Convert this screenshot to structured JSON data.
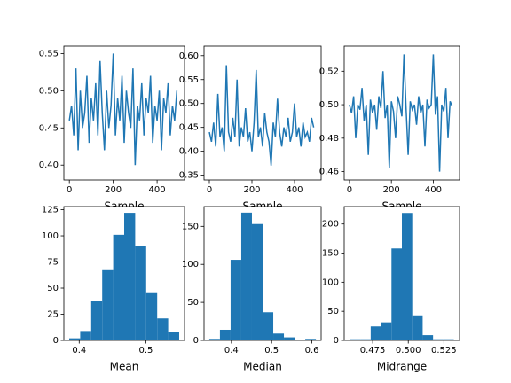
{
  "chart_data": [
    {
      "type": "line",
      "xlabel": "Sample",
      "color": "#1f77b4",
      "x": [
        0,
        10,
        20,
        30,
        40,
        50,
        60,
        70,
        80,
        90,
        100,
        110,
        120,
        130,
        140,
        150,
        160,
        170,
        180,
        190,
        200,
        210,
        220,
        230,
        240,
        250,
        260,
        270,
        280,
        290,
        300,
        310,
        320,
        330,
        340,
        350,
        360,
        370,
        380,
        390,
        400,
        410,
        420,
        430,
        440,
        450,
        460,
        470,
        480,
        490
      ],
      "values": [
        0.46,
        0.48,
        0.44,
        0.53,
        0.42,
        0.5,
        0.45,
        0.47,
        0.52,
        0.43,
        0.49,
        0.46,
        0.51,
        0.44,
        0.54,
        0.47,
        0.42,
        0.5,
        0.45,
        0.48,
        0.55,
        0.44,
        0.49,
        0.46,
        0.52,
        0.43,
        0.5,
        0.47,
        0.45,
        0.53,
        0.4,
        0.48,
        0.46,
        0.51,
        0.44,
        0.49,
        0.47,
        0.52,
        0.43,
        0.48,
        0.46,
        0.5,
        0.42,
        0.49,
        0.47,
        0.51,
        0.44,
        0.48,
        0.46,
        0.5
      ],
      "xlim": [
        -25,
        525
      ],
      "xticks": [
        0,
        200,
        400
      ],
      "ylim": [
        0.38,
        0.56
      ],
      "yticks": [
        {
          "value": 0.4,
          "label": "0.40"
        },
        0.45,
        {
          "value": 0.5,
          "label": "0.50"
        },
        0.55
      ]
    },
    {
      "type": "line",
      "xlabel": "Sample",
      "color": "#1f77b4",
      "x": [
        0,
        10,
        20,
        30,
        40,
        50,
        60,
        70,
        80,
        90,
        100,
        110,
        120,
        130,
        140,
        150,
        160,
        170,
        180,
        190,
        200,
        210,
        220,
        230,
        240,
        250,
        260,
        270,
        280,
        290,
        300,
        310,
        320,
        330,
        340,
        350,
        360,
        370,
        380,
        390,
        400,
        410,
        420,
        430,
        440,
        450,
        460,
        470,
        480,
        490
      ],
      "values": [
        0.44,
        0.42,
        0.46,
        0.41,
        0.52,
        0.43,
        0.45,
        0.4,
        0.58,
        0.44,
        0.42,
        0.47,
        0.43,
        0.55,
        0.41,
        0.45,
        0.43,
        0.49,
        0.42,
        0.44,
        0.4,
        0.46,
        0.57,
        0.43,
        0.45,
        0.41,
        0.48,
        0.44,
        0.42,
        0.37,
        0.46,
        0.43,
        0.51,
        0.44,
        0.41,
        0.45,
        0.43,
        0.47,
        0.42,
        0.44,
        0.5,
        0.43,
        0.45,
        0.41,
        0.46,
        0.43,
        0.44,
        0.42,
        0.47,
        0.45
      ],
      "xlim": [
        -25,
        525
      ],
      "xticks": [
        0,
        200,
        400
      ],
      "ylim": [
        0.34,
        0.62
      ],
      "yticks": [
        0.35,
        {
          "value": 0.4,
          "label": "0.40"
        },
        0.45,
        {
          "value": 0.5,
          "label": "0.50"
        },
        0.55,
        {
          "value": 0.6,
          "label": "0.60"
        }
      ]
    },
    {
      "type": "line",
      "xlabel": "Sample",
      "color": "#1f77b4",
      "x": [
        0,
        10,
        20,
        30,
        40,
        50,
        60,
        70,
        80,
        90,
        100,
        110,
        120,
        130,
        140,
        150,
        160,
        170,
        180,
        190,
        200,
        210,
        220,
        230,
        240,
        250,
        260,
        270,
        280,
        290,
        300,
        310,
        320,
        330,
        340,
        350,
        360,
        370,
        380,
        390,
        400,
        410,
        420,
        430,
        440,
        450,
        460,
        470,
        480,
        490
      ],
      "values": [
        0.5,
        0.495,
        0.505,
        0.48,
        0.5,
        0.497,
        0.51,
        0.49,
        0.5,
        0.47,
        0.503,
        0.495,
        0.5,
        0.485,
        0.505,
        0.498,
        0.52,
        0.492,
        0.5,
        0.462,
        0.502,
        0.496,
        0.48,
        0.505,
        0.5,
        0.493,
        0.53,
        0.498,
        0.47,
        0.502,
        0.497,
        0.5,
        0.488,
        0.505,
        0.495,
        0.5,
        0.475,
        0.503,
        0.498,
        0.5,
        0.53,
        0.494,
        0.505,
        0.46,
        0.5,
        0.496,
        0.51,
        0.48,
        0.502,
        0.499
      ],
      "xlim": [
        -25,
        525
      ],
      "xticks": [
        0,
        200,
        400
      ],
      "ylim": [
        0.455,
        0.535
      ],
      "yticks": [
        0.46,
        0.48,
        {
          "value": 0.5,
          "label": "0.50"
        },
        0.52
      ]
    },
    {
      "type": "histogram",
      "xlabel": "Mean",
      "color": "#1f77b4",
      "bins": [
        0.385,
        0.4015,
        0.418,
        0.4345,
        0.451,
        0.4675,
        0.484,
        0.5005,
        0.517,
        0.5335,
        0.55
      ],
      "values": [
        2,
        9,
        38,
        68,
        101,
        122,
        90,
        46,
        21,
        8
      ],
      "xlim": [
        0.377,
        0.558
      ],
      "xticks": [
        0.4,
        0.5
      ],
      "ylim": [
        0,
        128
      ],
      "yticks": [
        0,
        25,
        50,
        75,
        100,
        125
      ]
    },
    {
      "type": "histogram",
      "xlabel": "Median",
      "color": "#1f77b4",
      "bins": [
        0.345,
        0.3715,
        0.398,
        0.4245,
        0.451,
        0.4775,
        0.504,
        0.5305,
        0.557,
        0.5835,
        0.61
      ],
      "values": [
        2,
        14,
        106,
        168,
        153,
        37,
        9,
        4,
        0,
        2
      ],
      "xlim": [
        0.332,
        0.623
      ],
      "xticks": [
        0.4,
        0.5,
        0.6
      ],
      "ylim": [
        0,
        176
      ],
      "yticks": [
        0,
        50,
        100,
        150
      ]
    },
    {
      "type": "histogram",
      "xlabel": "Midrange",
      "color": "#1f77b4",
      "bins": [
        0.459,
        0.4663,
        0.4736,
        0.4809,
        0.4882,
        0.4955,
        0.5028,
        0.5101,
        0.5174,
        0.5247,
        0.532
      ],
      "values": [
        2,
        2,
        24,
        31,
        158,
        219,
        43,
        9,
        2,
        2
      ],
      "xlim": [
        0.455,
        0.536
      ],
      "xticks": [
        0.475,
        {
          "value": 0.5,
          "label": "0.500"
        },
        0.525
      ],
      "ylim": [
        0,
        230
      ],
      "yticks": [
        0,
        50,
        100,
        150,
        200
      ]
    }
  ]
}
